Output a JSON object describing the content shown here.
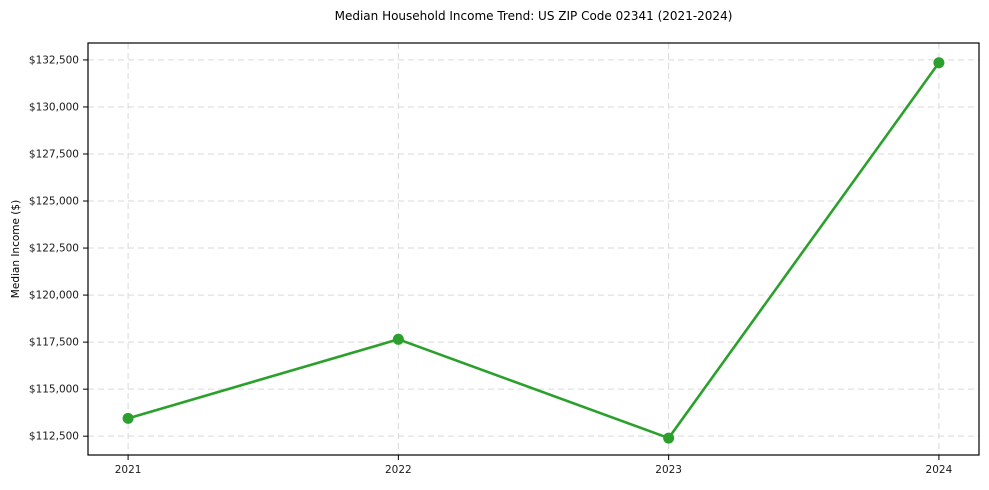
{
  "chart_data": {
    "type": "line",
    "title": "Median Household Income Trend: US ZIP Code 02341 (2021-2024)",
    "xlabel": "",
    "ylabel": "Median Income ($)",
    "categories": [
      "2021",
      "2022",
      "2023",
      "2024"
    ],
    "series": [
      {
        "name": "Median Household Income",
        "values": [
          113450,
          117650,
          112400,
          132350
        ],
        "color": "#2ca02c",
        "marker": "circle"
      }
    ],
    "ylim": [
      111500,
      133400
    ],
    "yticks": [
      {
        "value": 112500,
        "label": "$112,500"
      },
      {
        "value": 115000,
        "label": "$115,000"
      },
      {
        "value": 117500,
        "label": "$117,500"
      },
      {
        "value": 120000,
        "label": "$120,000"
      },
      {
        "value": 122500,
        "label": "$122,500"
      },
      {
        "value": 125000,
        "label": "$125,000"
      },
      {
        "value": 127500,
        "label": "$127,500"
      },
      {
        "value": 130000,
        "label": "$130,000"
      },
      {
        "value": 132500,
        "label": "$132,500"
      }
    ],
    "grid": {
      "visible": true,
      "style": "dashed",
      "color": "#d9d9d9"
    },
    "legend": "none",
    "spine_color": "#000000",
    "background_color": "#ffffff"
  }
}
